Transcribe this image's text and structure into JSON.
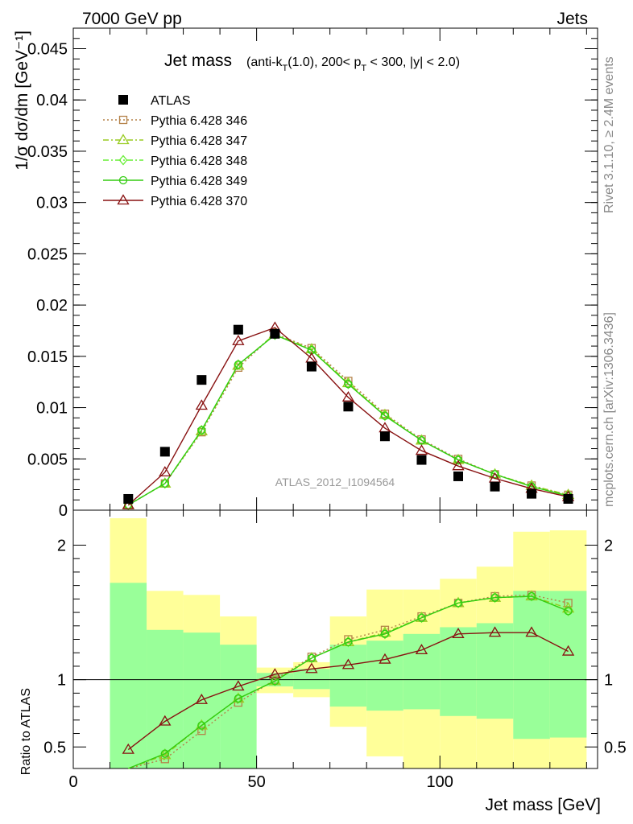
{
  "header": {
    "left": "7000 GeV pp",
    "right": "Jets"
  },
  "side_text": {
    "rivet": "Rivet 3.1.10, ≥ 2.4M events",
    "mcplots": "mcplots.cern.ch [arXiv:1306.3436]"
  },
  "chart_data": [
    {
      "type": "scatter",
      "title_main": "Jet mass",
      "title_sub": "(anti-k",
      "title_sub_T": "T",
      "title_sub2": "(1.0), 200< p",
      "title_sub_T2": "T",
      "title_sub3": " < 300, |y| < 2.0)",
      "watermark": "ATLAS_2012_I1094564",
      "ylabel": "1/σ dσ/dm [GeV⁻¹]",
      "ylim": [
        0,
        0.047
      ],
      "yticks": [
        "0",
        "0.005",
        "0.01",
        "0.015",
        "0.02",
        "0.025",
        "0.03",
        "0.035",
        "0.04",
        "0.045"
      ],
      "x": [
        15,
        25,
        35,
        45,
        55,
        65,
        75,
        85,
        95,
        105,
        115,
        125,
        135
      ],
      "legend_position": "top-left",
      "series": [
        {
          "name": "ATLAS",
          "color": "#000000",
          "marker": "square-filled",
          "line": "none",
          "values": [
            0.0011,
            0.0057,
            0.0127,
            0.0176,
            0.0172,
            0.014,
            0.0101,
            0.0072,
            0.0049,
            0.0033,
            0.0023,
            0.0016,
            0.0011
          ]
        },
        {
          "name": "Pythia 6.428 346",
          "color": "#b5834a",
          "marker": "square-open",
          "line": "dotted",
          "values": [
            0.0005,
            0.0026,
            0.0076,
            0.0139,
            0.0172,
            0.0158,
            0.0126,
            0.0094,
            0.0069,
            0.005,
            0.0035,
            0.0024,
            0.0015
          ]
        },
        {
          "name": "Pythia 6.428 347",
          "color": "#99cc22",
          "marker": "triangle-open",
          "line": "dashdot",
          "values": [
            0.0005,
            0.0026,
            0.0077,
            0.0141,
            0.0172,
            0.0157,
            0.0124,
            0.0093,
            0.0068,
            0.0049,
            0.0035,
            0.0024,
            0.0015
          ]
        },
        {
          "name": "Pythia 6.428 348",
          "color": "#66ee33",
          "marker": "diamond-open",
          "line": "dashdot",
          "values": [
            0.0005,
            0.0026,
            0.0078,
            0.0142,
            0.0171,
            0.0156,
            0.0123,
            0.0092,
            0.0068,
            0.0049,
            0.0035,
            0.0023,
            0.0014
          ]
        },
        {
          "name": "Pythia 6.428 349",
          "color": "#33cc11",
          "marker": "circle-open",
          "line": "solid",
          "values": [
            0.0005,
            0.0026,
            0.0078,
            0.0142,
            0.0171,
            0.0156,
            0.0123,
            0.0092,
            0.0068,
            0.0049,
            0.0035,
            0.0023,
            0.0014
          ]
        },
        {
          "name": "Pythia 6.428 370",
          "color": "#881111",
          "marker": "triangle-open",
          "line": "solid",
          "values": [
            0.0005,
            0.0037,
            0.0102,
            0.0165,
            0.0178,
            0.0148,
            0.011,
            0.008,
            0.0058,
            0.0043,
            0.0031,
            0.0021,
            0.0013
          ]
        }
      ]
    },
    {
      "type": "scatter",
      "ylabel": "Ratio to ATLAS",
      "xlabel": "Jet mass [GeV]",
      "xlim": [
        0,
        143
      ],
      "xticks": [
        "0",
        "50",
        "100"
      ],
      "ylim": [
        0.34,
        2.26
      ],
      "yticks": [
        "0.5",
        "1",
        "2"
      ],
      "x": [
        15,
        25,
        35,
        45,
        55,
        65,
        75,
        85,
        95,
        105,
        115,
        125,
        135
      ],
      "bins": [
        [
          10,
          20
        ],
        [
          20,
          30
        ],
        [
          30,
          40
        ],
        [
          40,
          50
        ],
        [
          50,
          60
        ],
        [
          60,
          70
        ],
        [
          70,
          80
        ],
        [
          80,
          90
        ],
        [
          90,
          100
        ],
        [
          100,
          110
        ],
        [
          110,
          120
        ],
        [
          120,
          130
        ],
        [
          130,
          140
        ]
      ],
      "band_outer": {
        "color": "#ffff99",
        "low": [
          0.41,
          0.78,
          0.72,
          0.6,
          0.9,
          0.87,
          0.65,
          0.43,
          0.33,
          0.33,
          0.33,
          0.33,
          0.33
        ],
        "high": [
          2.2,
          1.66,
          1.63,
          1.47,
          1.09,
          1.13,
          1.47,
          1.67,
          1.67,
          1.75,
          1.84,
          2.1,
          2.11
        ]
      },
      "band_inner": {
        "color": "#99ff99",
        "low": [
          0.33,
          0.33,
          0.33,
          0.33,
          0.95,
          0.93,
          0.8,
          0.77,
          0.78,
          0.73,
          0.71,
          0.56,
          0.57
        ],
        "high": [
          1.72,
          1.37,
          1.35,
          1.26,
          1.05,
          1.08,
          1.26,
          1.29,
          1.34,
          1.39,
          1.42,
          1.66,
          1.66
        ]
      },
      "series": [
        {
          "name": "Pythia 6.428 346",
          "color": "#b5834a",
          "marker": "square-open",
          "line": "dotted",
          "values": [
            0.3,
            0.41,
            0.62,
            0.83,
            1.0,
            1.17,
            1.3,
            1.37,
            1.47,
            1.57,
            1.62,
            1.63,
            1.57
          ]
        },
        {
          "name": "Pythia 6.428 347",
          "color": "#99cc22",
          "marker": "triangle-open",
          "line": "dashdot",
          "values": [
            0.3,
            0.44,
            0.66,
            0.86,
            0.99,
            1.16,
            1.28,
            1.35,
            1.46,
            1.57,
            1.61,
            1.62,
            1.53
          ]
        },
        {
          "name": "Pythia 6.428 348",
          "color": "#66ee33",
          "marker": "diamond-open",
          "line": "dashdot",
          "values": [
            0.3,
            0.45,
            0.66,
            0.86,
            0.99,
            1.16,
            1.28,
            1.34,
            1.46,
            1.57,
            1.61,
            1.62,
            1.51
          ]
        },
        {
          "name": "Pythia 6.428 349",
          "color": "#33cc11",
          "marker": "circle-open",
          "line": "solid",
          "values": [
            0.3,
            0.45,
            0.66,
            0.86,
            0.99,
            1.16,
            1.28,
            1.34,
            1.46,
            1.57,
            1.61,
            1.62,
            1.51
          ]
        },
        {
          "name": "Pythia 6.428 370",
          "color": "#881111",
          "marker": "triangle-open",
          "line": "solid",
          "values": [
            0.48,
            0.69,
            0.85,
            0.95,
            1.04,
            1.08,
            1.11,
            1.15,
            1.22,
            1.34,
            1.35,
            1.35,
            1.21
          ]
        }
      ]
    }
  ]
}
